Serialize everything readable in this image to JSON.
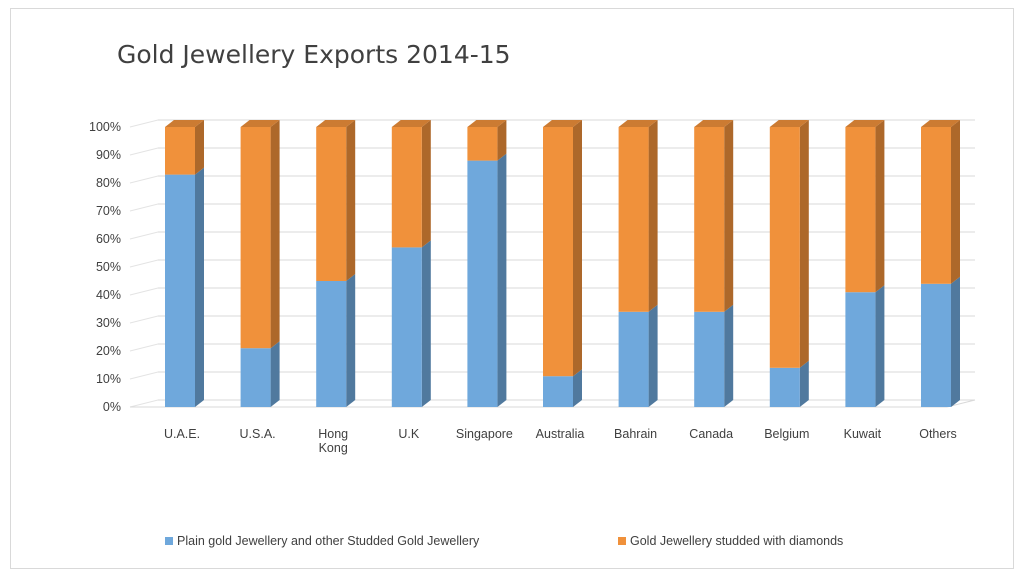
{
  "chart_data": {
    "type": "bar",
    "stacked": "percent",
    "title": "Gold Jewellery Exports 2014-15",
    "categories": [
      "U.A.E.",
      "U.S.A.",
      "Hong Kong",
      "U.K",
      "Singapore",
      "Australia",
      "Bahrain",
      "Canada",
      "Belgium",
      "Kuwait",
      "Others"
    ],
    "series": [
      {
        "name": "Plain gold Jewellery and other Studded Gold Jewellery",
        "color": "#6fa8dc",
        "values": [
          83,
          21,
          45,
          57,
          88,
          11,
          34,
          34,
          14,
          41,
          44
        ]
      },
      {
        "name": "Gold Jewellery studded with diamonds",
        "color": "#f0913b",
        "values": [
          17,
          79,
          55,
          43,
          12,
          89,
          66,
          66,
          86,
          59,
          56
        ]
      }
    ],
    "yticks": [
      "0%",
      "10%",
      "20%",
      "30%",
      "40%",
      "50%",
      "60%",
      "70%",
      "80%",
      "90%",
      "100%"
    ],
    "ylim": [
      0,
      100
    ],
    "grid": true,
    "legend_position": "bottom",
    "style": "3d-column"
  }
}
